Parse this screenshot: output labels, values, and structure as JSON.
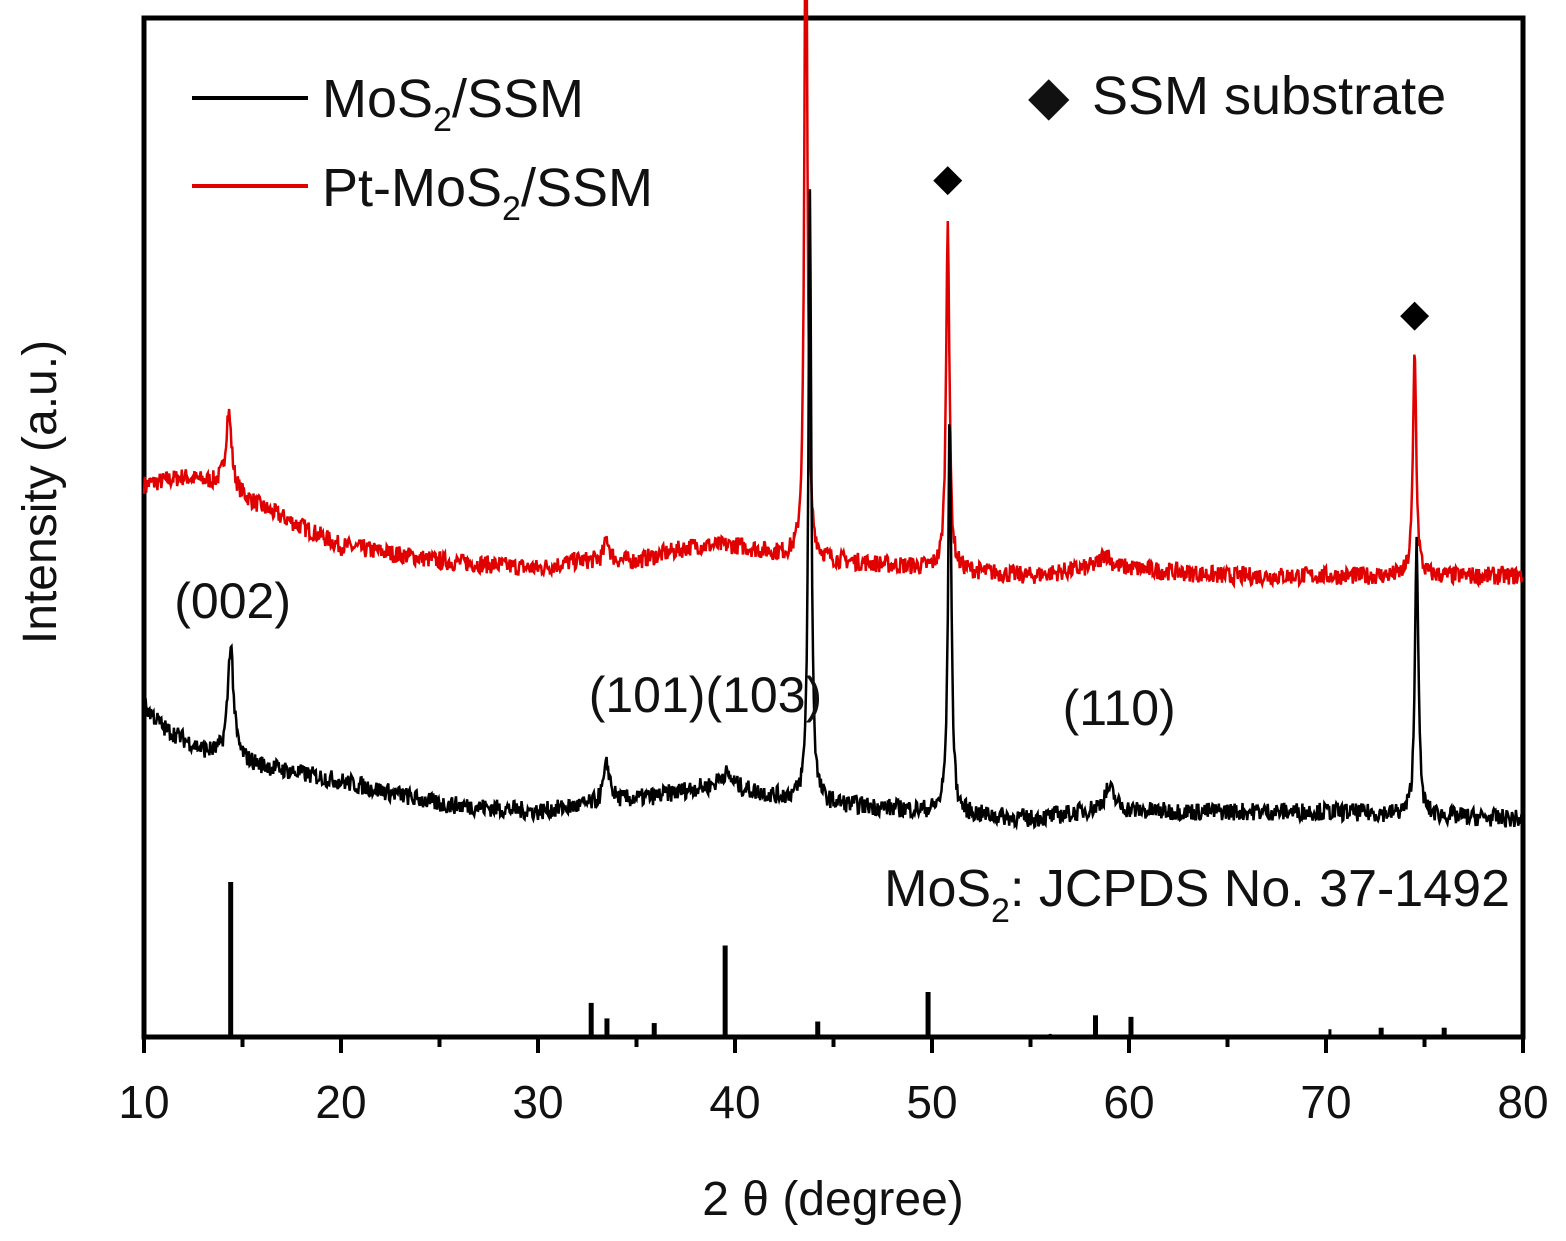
{
  "chart_data": {
    "type": "line",
    "xlabel": "2 θ (degree)",
    "ylabel": "Intensity (a.u.)",
    "xlim": [
      10,
      80
    ],
    "xticks": [
      "10",
      "20",
      "30",
      "40",
      "50",
      "60",
      "70",
      "80"
    ],
    "xtick_values": [
      10,
      20,
      30,
      40,
      50,
      60,
      70,
      80
    ],
    "colors": {
      "mos2": "#000000",
      "pt_mos2": "#e00000",
      "frame": "#000000"
    },
    "legend": {
      "position": "top-left",
      "entries": [
        {
          "name": "MoS",
          "sub": "2",
          "suffix": "/SSM",
          "color": "#000000"
        },
        {
          "name": "Pt-MoS",
          "sub": "2",
          "suffix": "/SSM",
          "color": "#e00000"
        }
      ]
    },
    "marker_legend": {
      "symbol": "◆",
      "label": "SSM substrate",
      "position": "top-right"
    },
    "series": [
      {
        "name": "Pt-MoS2/SSM",
        "color": "#e00000",
        "baseline": [
          [
            10,
            0.52
          ],
          [
            12,
            0.53
          ],
          [
            14,
            0.52
          ],
          [
            16,
            0.49
          ],
          [
            20,
            0.44
          ],
          [
            25,
            0.42
          ],
          [
            30,
            0.41
          ],
          [
            32,
            0.42
          ],
          [
            35,
            0.42
          ],
          [
            38,
            0.44
          ],
          [
            40,
            0.44
          ],
          [
            42,
            0.43
          ],
          [
            45,
            0.42
          ],
          [
            50,
            0.41
          ],
          [
            55,
            0.4
          ],
          [
            58,
            0.41
          ],
          [
            60,
            0.41
          ],
          [
            65,
            0.4
          ],
          [
            70,
            0.4
          ],
          [
            80,
            0.4
          ]
        ],
        "peaks": [
          [
            14.3,
            0.1,
            0.35
          ],
          [
            33.5,
            0.03,
            0.3
          ],
          [
            43.6,
            0.95,
            0.18
          ],
          [
            50.8,
            0.47,
            0.2
          ],
          [
            58.8,
            0.02,
            0.6
          ],
          [
            74.5,
            0.3,
            0.2
          ]
        ],
        "noise": 0.012
      },
      {
        "name": "MoS2/SSM",
        "color": "#000000",
        "baseline": [
          [
            10,
            0.23
          ],
          [
            11,
            0.2
          ],
          [
            13,
            0.17
          ],
          [
            16,
            0.15
          ],
          [
            20,
            0.13
          ],
          [
            25,
            0.1
          ],
          [
            30,
            0.09
          ],
          [
            33,
            0.1
          ],
          [
            36,
            0.11
          ],
          [
            38,
            0.12
          ],
          [
            40,
            0.12
          ],
          [
            42,
            0.11
          ],
          [
            45,
            0.1
          ],
          [
            50,
            0.09
          ],
          [
            55,
            0.08
          ],
          [
            58,
            0.09
          ],
          [
            60,
            0.09
          ],
          [
            65,
            0.09
          ],
          [
            70,
            0.09
          ],
          [
            80,
            0.08
          ]
        ],
        "peaks": [
          [
            14.4,
            0.15,
            0.35
          ],
          [
            33.5,
            0.05,
            0.4
          ],
          [
            39.5,
            0.02,
            0.8
          ],
          [
            43.8,
            0.8,
            0.18
          ],
          [
            50.9,
            0.52,
            0.2
          ],
          [
            59.0,
            0.03,
            0.7
          ],
          [
            74.6,
            0.37,
            0.2
          ]
        ],
        "noise": 0.012
      }
    ],
    "substrate_peaks": [
      43.6,
      50.8,
      74.5
    ],
    "annotations": [
      {
        "text": "(002)",
        "x": 14.5
      },
      {
        "text": "(101)(103)",
        "x": 38.5
      },
      {
        "text": "(110)",
        "x": 59.5
      }
    ],
    "reference": {
      "label": "MoS",
      "sub": "2",
      "suffix": ": JCPDS No. 37-1492",
      "lines": [
        [
          14.4,
          100
        ],
        [
          32.7,
          22
        ],
        [
          33.5,
          12
        ],
        [
          35.9,
          9
        ],
        [
          39.5,
          59
        ],
        [
          44.2,
          10
        ],
        [
          49.8,
          29
        ],
        [
          56.0,
          2
        ],
        [
          58.3,
          14
        ],
        [
          60.1,
          13
        ],
        [
          62.8,
          1
        ],
        [
          68.5,
          1
        ],
        [
          70.2,
          5
        ],
        [
          72.8,
          6
        ],
        [
          76.0,
          6
        ],
        [
          77.5,
          1
        ],
        [
          78.7,
          1
        ]
      ]
    }
  }
}
